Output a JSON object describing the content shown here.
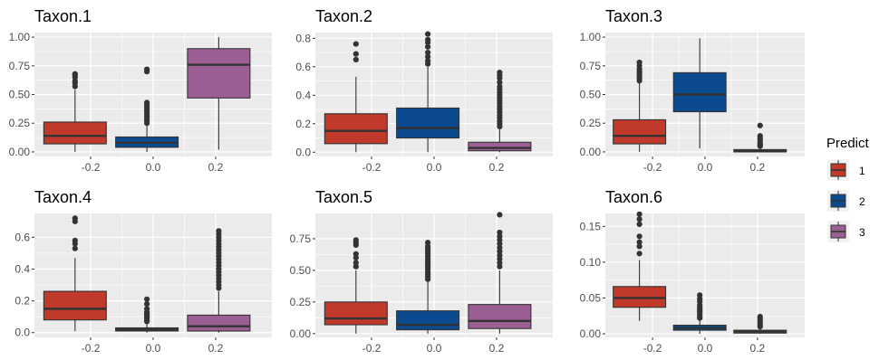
{
  "chart_data": {
    "type": "boxplot",
    "grid": true,
    "legend": {
      "title": "Predict",
      "placement": "right",
      "entries": [
        {
          "label": "1",
          "color": "#c0392b"
        },
        {
          "label": "2",
          "color": "#0b4a8f"
        },
        {
          "label": "3",
          "color": "#9b5f93"
        }
      ]
    },
    "x_ticks": [
      -0.2,
      0.0,
      0.2
    ],
    "x_tick_labels": [
      "-0.2",
      "0.0",
      "0.2"
    ],
    "panels": [
      {
        "title": "Taxon.1",
        "xlim": [
          -0.38,
          0.38
        ],
        "ylim": [
          -0.04,
          1.04
        ],
        "y_ticks": [
          0,
          0.25,
          0.5,
          0.75,
          1.0
        ],
        "y_tick_labels": [
          "0.00",
          "0.25",
          "0.50",
          "0.75",
          "1.00"
        ],
        "boxes": [
          {
            "group": "1",
            "x": -0.25,
            "width": 0.2,
            "lower_whisker": 0.0,
            "q1": 0.07,
            "median": 0.14,
            "q3": 0.26,
            "upper_whisker": 0.54,
            "outliers": [
              0.57,
              0.6,
              0.62,
              0.65,
              0.67,
              0.68
            ]
          },
          {
            "group": "2",
            "x": -0.02,
            "width": 0.2,
            "lower_whisker": 0.0,
            "q1": 0.04,
            "median": 0.08,
            "q3": 0.13,
            "upper_whisker": 0.23,
            "outliers": [
              0.25,
              0.27,
              0.29,
              0.31,
              0.33,
              0.35,
              0.37,
              0.39,
              0.41,
              0.43,
              0.7,
              0.72
            ]
          },
          {
            "group": "3",
            "x": 0.21,
            "width": 0.2,
            "lower_whisker": 0.02,
            "q1": 0.47,
            "median": 0.76,
            "q3": 0.9,
            "upper_whisker": 1.0,
            "outliers": []
          }
        ]
      },
      {
        "title": "Taxon.2",
        "xlim": [
          -0.38,
          0.38
        ],
        "ylim": [
          -0.03,
          0.84
        ],
        "y_ticks": [
          0,
          0.2,
          0.4,
          0.6,
          0.8
        ],
        "y_tick_labels": [
          "0.0",
          "0.2",
          "0.4",
          "0.6",
          "0.8"
        ],
        "boxes": [
          {
            "group": "1",
            "x": -0.25,
            "width": 0.2,
            "lower_whisker": 0.0,
            "q1": 0.06,
            "median": 0.15,
            "q3": 0.27,
            "upper_whisker": 0.53,
            "outliers": [
              0.65,
              0.69,
              0.76
            ]
          },
          {
            "group": "2",
            "x": -0.02,
            "width": 0.2,
            "lower_whisker": 0.0,
            "q1": 0.1,
            "median": 0.17,
            "q3": 0.31,
            "upper_whisker": 0.6,
            "outliers": [
              0.62,
              0.64,
              0.67,
              0.7,
              0.74,
              0.77,
              0.79,
              0.83
            ]
          },
          {
            "group": "3",
            "x": 0.21,
            "width": 0.2,
            "lower_whisker": 0.0,
            "q1": 0.01,
            "median": 0.03,
            "q3": 0.07,
            "upper_whisker": 0.16,
            "outliers": [
              0.18,
              0.2,
              0.22,
              0.24,
              0.26,
              0.28,
              0.3,
              0.32,
              0.34,
              0.36,
              0.38,
              0.4,
              0.42,
              0.44,
              0.46,
              0.49,
              0.52,
              0.54,
              0.56
            ]
          }
        ]
      },
      {
        "title": "Taxon.3",
        "xlim": [
          -0.38,
          0.38
        ],
        "ylim": [
          -0.04,
          1.04
        ],
        "y_ticks": [
          0,
          0.25,
          0.5,
          0.75,
          1.0
        ],
        "y_tick_labels": [
          "0.00",
          "0.25",
          "0.50",
          "0.75",
          "1.00"
        ],
        "boxes": [
          {
            "group": "1",
            "x": -0.25,
            "width": 0.2,
            "lower_whisker": 0.0,
            "q1": 0.07,
            "median": 0.14,
            "q3": 0.28,
            "upper_whisker": 0.6,
            "outliers": [
              0.62,
              0.64,
              0.66,
              0.68,
              0.7,
              0.72,
              0.75,
              0.78
            ]
          },
          {
            "group": "2",
            "x": -0.02,
            "width": 0.2,
            "lower_whisker": 0.03,
            "q1": 0.35,
            "median": 0.5,
            "q3": 0.69,
            "upper_whisker": 0.99,
            "outliers": []
          },
          {
            "group": "3",
            "x": 0.21,
            "width": 0.2,
            "lower_whisker": 0.0,
            "q1": 0.0,
            "median": 0.01,
            "q3": 0.02,
            "upper_whisker": 0.04,
            "outliers": [
              0.05,
              0.06,
              0.07,
              0.08,
              0.1,
              0.12,
              0.14,
              0.23
            ]
          }
        ]
      },
      {
        "title": "Taxon.4",
        "xlim": [
          -0.38,
          0.38
        ],
        "ylim": [
          -0.03,
          0.75
        ],
        "y_ticks": [
          0,
          0.2,
          0.4,
          0.6
        ],
        "y_tick_labels": [
          "0.0",
          "0.2",
          "0.4",
          "0.6"
        ],
        "boxes": [
          {
            "group": "1",
            "x": -0.25,
            "width": 0.2,
            "lower_whisker": 0.01,
            "q1": 0.08,
            "median": 0.15,
            "q3": 0.26,
            "upper_whisker": 0.47,
            "outliers": [
              0.53,
              0.56,
              0.58,
              0.7,
              0.72
            ]
          },
          {
            "group": "2",
            "x": -0.02,
            "width": 0.2,
            "lower_whisker": 0.0,
            "q1": 0.01,
            "median": 0.02,
            "q3": 0.03,
            "upper_whisker": 0.06,
            "outliers": [
              0.07,
              0.08,
              0.09,
              0.1,
              0.11,
              0.12,
              0.13,
              0.15,
              0.18,
              0.21
            ]
          },
          {
            "group": "3",
            "x": 0.21,
            "width": 0.2,
            "lower_whisker": 0.0,
            "q1": 0.01,
            "median": 0.04,
            "q3": 0.11,
            "upper_whisker": 0.26,
            "outliers": [
              0.28,
              0.3,
              0.32,
              0.34,
              0.36,
              0.38,
              0.4,
              0.42,
              0.44,
              0.46,
              0.48,
              0.5,
              0.52,
              0.54,
              0.56,
              0.58,
              0.6,
              0.62,
              0.64
            ]
          }
        ]
      },
      {
        "title": "Taxon.5",
        "xlim": [
          -0.38,
          0.38
        ],
        "ylim": [
          -0.03,
          0.95
        ],
        "y_ticks": [
          0,
          0.25,
          0.5,
          0.75
        ],
        "y_tick_labels": [
          "0.00",
          "0.25",
          "0.50",
          "0.75"
        ],
        "boxes": [
          {
            "group": "1",
            "x": -0.25,
            "width": 0.2,
            "lower_whisker": 0.0,
            "q1": 0.07,
            "median": 0.12,
            "q3": 0.25,
            "upper_whisker": 0.5,
            "outliers": [
              0.53,
              0.56,
              0.6,
              0.63,
              0.7,
              0.72,
              0.74
            ]
          },
          {
            "group": "2",
            "x": -0.02,
            "width": 0.2,
            "lower_whisker": 0.0,
            "q1": 0.03,
            "median": 0.07,
            "q3": 0.18,
            "upper_whisker": 0.41,
            "outliers": [
              0.43,
              0.45,
              0.47,
              0.49,
              0.51,
              0.53,
              0.55,
              0.57,
              0.59,
              0.61,
              0.63,
              0.65,
              0.67,
              0.69,
              0.72
            ]
          },
          {
            "group": "3",
            "x": 0.21,
            "width": 0.2,
            "lower_whisker": 0.0,
            "q1": 0.04,
            "median": 0.1,
            "q3": 0.23,
            "upper_whisker": 0.5,
            "outliers": [
              0.53,
              0.56,
              0.59,
              0.62,
              0.65,
              0.68,
              0.71,
              0.74,
              0.77,
              0.8,
              0.94
            ]
          }
        ]
      },
      {
        "title": "Taxon.6",
        "xlim": [
          -0.38,
          0.38
        ],
        "ylim": [
          -0.005,
          0.168
        ],
        "y_ticks": [
          0,
          0.05,
          0.1,
          0.15
        ],
        "y_tick_labels": [
          "0.00",
          "0.05",
          "0.10",
          "0.15"
        ],
        "boxes": [
          {
            "group": "1",
            "x": -0.25,
            "width": 0.2,
            "lower_whisker": 0.018,
            "q1": 0.037,
            "median": 0.05,
            "q3": 0.066,
            "upper_whisker": 0.103,
            "outliers": [
              0.112,
              0.122,
              0.128,
              0.136,
              0.153,
              0.16,
              0.167
            ]
          },
          {
            "group": "2",
            "x": -0.02,
            "width": 0.2,
            "lower_whisker": 0.0,
            "q1": 0.005,
            "median": 0.008,
            "q3": 0.012,
            "upper_whisker": 0.02,
            "outliers": [
              0.022,
              0.025,
              0.028,
              0.031,
              0.034,
              0.037,
              0.04,
              0.045,
              0.049,
              0.054
            ]
          },
          {
            "group": "3",
            "x": 0.21,
            "width": 0.2,
            "lower_whisker": 0.0,
            "q1": 0.001,
            "median": 0.003,
            "q3": 0.005,
            "upper_whisker": 0.008,
            "outliers": [
              0.01,
              0.012,
              0.015,
              0.018,
              0.021,
              0.024
            ]
          }
        ]
      }
    ]
  }
}
